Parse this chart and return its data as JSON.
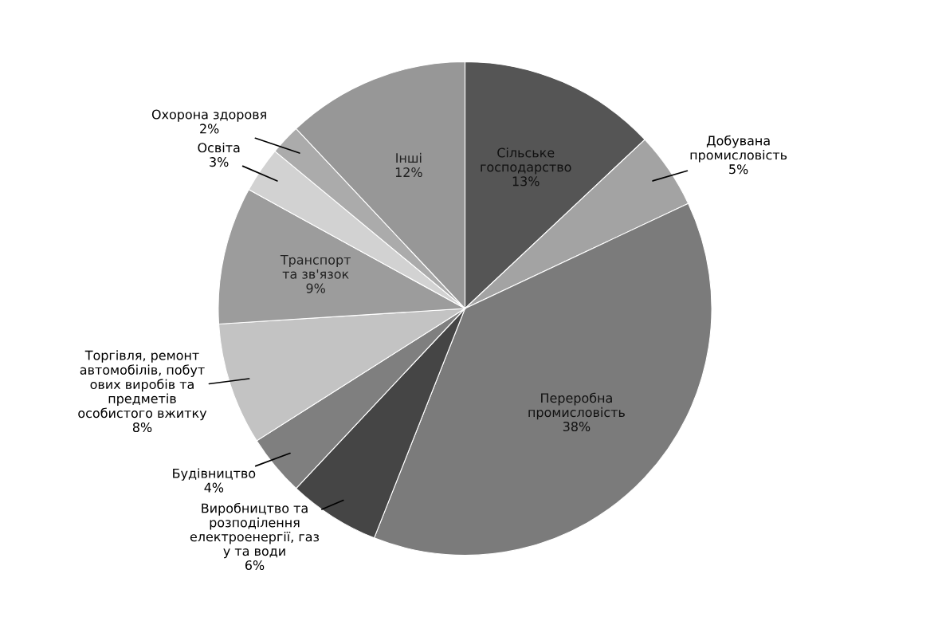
{
  "chart_data": {
    "type": "pie",
    "categories": [
      "Сільське\nгосподарство",
      "Добувана\nпромисловість",
      "Переробна\nпромисловість",
      "Виробництво та\nрозподілення\nелектроенергії, газ\nу та води",
      "Будівництво",
      "Торгівля, ремонт\nавтомобілів, побут\nових виробів та\nпредметів\nособистого вжитку",
      "Транспорт\nта зв'язок",
      "Освіта",
      "Охорона здоровя",
      "Інші"
    ],
    "values": [
      13,
      5,
      38,
      6,
      4,
      8,
      9,
      3,
      2,
      12
    ],
    "value_labels": [
      "13%",
      "5%",
      "38%",
      "6%",
      "4%",
      "8%",
      "9%",
      "3%",
      "2%",
      "12%"
    ],
    "colors": [
      "#555555",
      "#a3a3a3",
      "#7b7b7b",
      "#454545",
      "#7f7f7f",
      "#c3c3c3",
      "#9c9c9c",
      "#d2d2d2",
      "#ababab",
      "#979797"
    ],
    "legend": false
  }
}
